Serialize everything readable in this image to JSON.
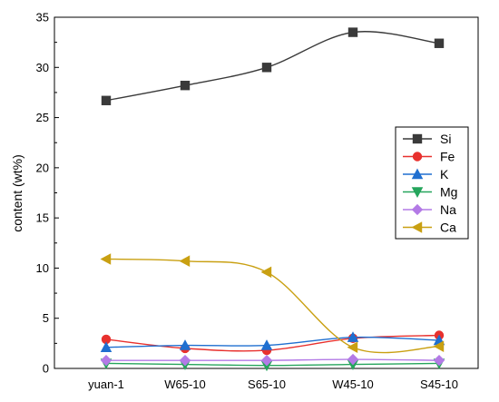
{
  "chart_data": {
    "type": "line",
    "title": "",
    "xlabel": "",
    "ylabel": "content (wt%)",
    "categories": [
      "yuan-1",
      "W65-10",
      "S65-10",
      "W45-10",
      "S45-10"
    ],
    "ylim": [
      0,
      35
    ],
    "yticks": [
      0,
      5,
      10,
      15,
      20,
      25,
      30,
      35
    ],
    "grid": false,
    "legend_position": "right",
    "smooth": true,
    "series": [
      {
        "name": "Si",
        "color": "#3a3a3a",
        "marker": "square",
        "values": [
          26.7,
          28.2,
          30.0,
          33.5,
          32.4
        ]
      },
      {
        "name": "Fe",
        "color": "#e8312e",
        "marker": "circle",
        "values": [
          2.9,
          2.0,
          1.8,
          3.0,
          3.3
        ]
      },
      {
        "name": "K",
        "color": "#1f6fd0",
        "marker": "triangle-up",
        "values": [
          2.1,
          2.3,
          2.3,
          3.1,
          2.8
        ]
      },
      {
        "name": "Mg",
        "color": "#25a55c",
        "marker": "triangle-down",
        "values": [
          0.5,
          0.4,
          0.3,
          0.4,
          0.5
        ]
      },
      {
        "name": "Na",
        "color": "#b37ae6",
        "marker": "diamond",
        "values": [
          0.8,
          0.8,
          0.8,
          0.9,
          0.8
        ]
      },
      {
        "name": "Ca",
        "color": "#c9a012",
        "marker": "triangle-left",
        "values": [
          10.9,
          10.7,
          9.6,
          2.1,
          2.2
        ]
      }
    ]
  }
}
